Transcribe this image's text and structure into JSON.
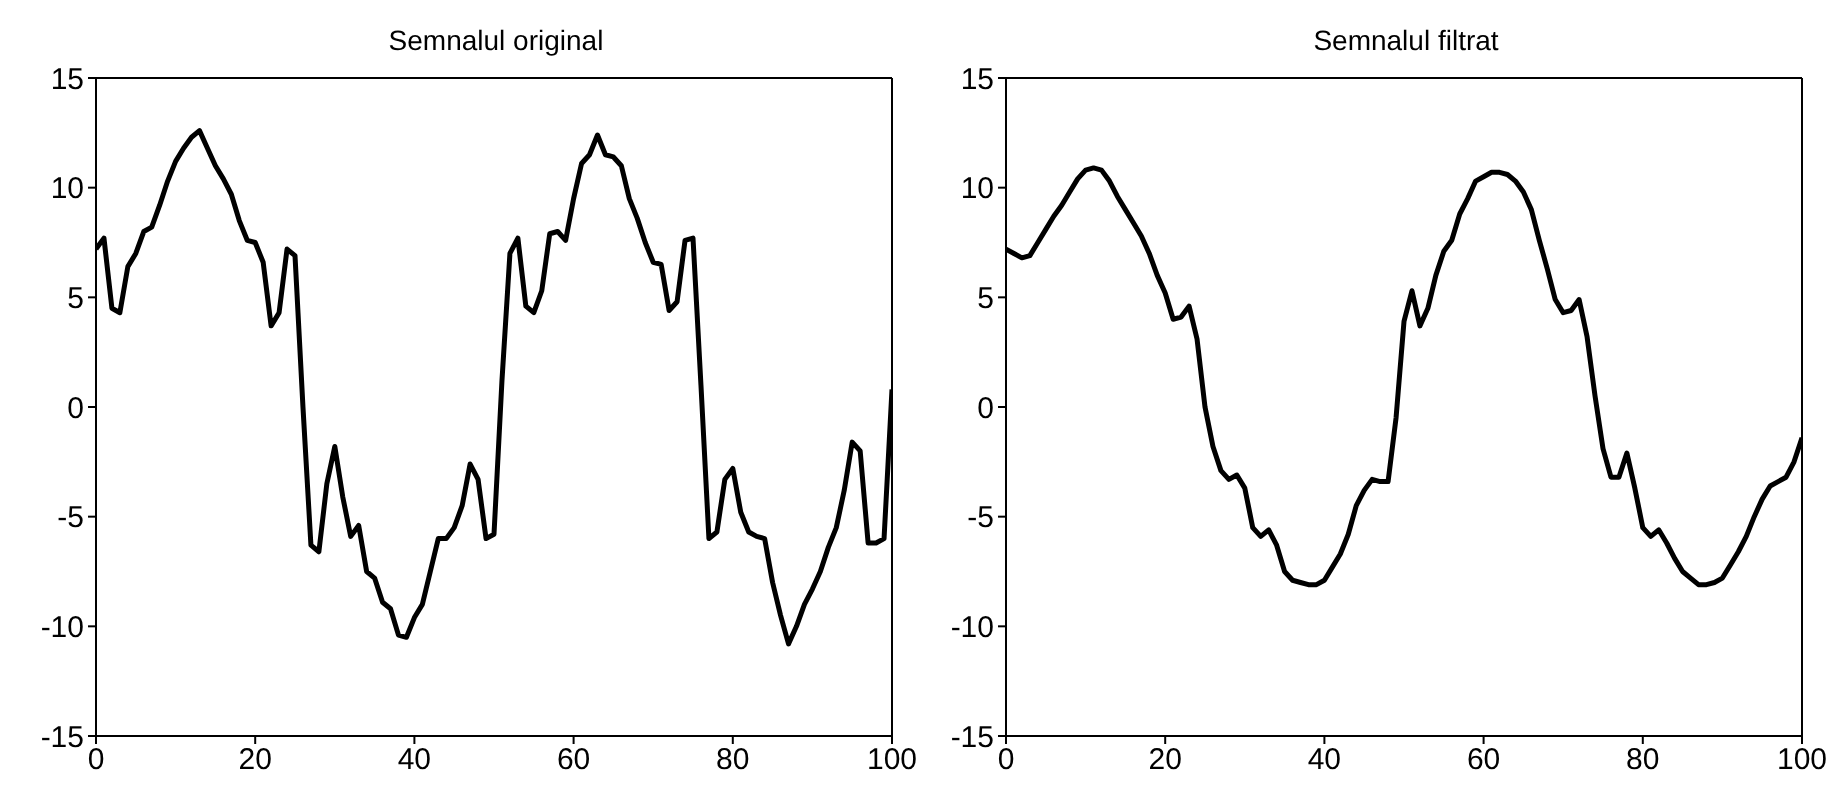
{
  "chart_data": [
    {
      "type": "line",
      "title": "Semnalul original",
      "x": [
        0,
        1,
        2,
        3,
        4,
        5,
        6,
        7,
        8,
        9,
        10,
        11,
        12,
        13,
        14,
        15,
        16,
        17,
        18,
        19,
        20,
        21,
        22,
        23,
        24,
        25,
        26,
        27,
        28,
        29,
        30,
        31,
        32,
        33,
        34,
        35,
        36,
        37,
        38,
        39,
        40,
        41,
        42,
        43,
        44,
        45,
        46,
        47,
        48,
        49,
        50,
        51,
        52,
        53,
        54,
        55,
        56,
        57,
        58,
        59,
        60,
        61,
        62,
        63,
        64,
        65,
        66,
        67,
        68,
        69,
        70,
        71,
        72,
        73,
        74,
        75,
        76,
        77,
        78,
        79,
        80,
        81,
        82,
        83,
        84,
        85,
        86,
        87,
        88,
        89,
        90,
        91,
        92,
        93,
        94,
        95,
        96,
        97,
        98,
        99,
        100
      ],
      "series": [
        {
          "color": "#000000",
          "values": [
            7.2,
            7.7,
            4.5,
            4.3,
            6.4,
            7.0,
            8.0,
            8.2,
            9.2,
            10.3,
            11.2,
            11.8,
            12.3,
            12.6,
            11.8,
            11.0,
            10.4,
            9.7,
            8.5,
            7.6,
            7.5,
            6.6,
            3.7,
            4.3,
            7.2,
            6.9,
            0.0,
            -6.3,
            -6.6,
            -3.5,
            -1.8,
            -4.1,
            -5.9,
            -5.4,
            -7.5,
            -7.8,
            -8.9,
            -9.2,
            -10.4,
            -10.5,
            -9.6,
            -9.0,
            -7.5,
            -6.0,
            -6.0,
            -5.5,
            -4.5,
            -2.6,
            -3.3,
            -6.0,
            -5.8,
            1.2,
            7.0,
            7.7,
            4.6,
            4.3,
            5.3,
            7.9,
            8.0,
            7.6,
            9.5,
            11.1,
            11.5,
            12.4,
            11.5,
            11.4,
            11.0,
            9.5,
            8.6,
            7.5,
            6.6,
            6.5,
            4.4,
            4.8,
            7.6,
            7.7,
            1.0,
            -6.0,
            -5.7,
            -3.3,
            -2.8,
            -4.8,
            -5.7,
            -5.9,
            -6.0,
            -8.0,
            -9.5,
            -10.8,
            -10.0,
            -9.0,
            -8.3,
            -7.5,
            -6.4,
            -5.5,
            -3.8,
            -1.6,
            -2.0,
            -6.2,
            -6.2,
            -6.0,
            0.8
          ]
        }
      ],
      "xlim": [
        0,
        100
      ],
      "xticks": [
        0,
        20,
        40,
        60,
        80,
        100
      ],
      "ylim": [
        -15,
        15
      ],
      "yticks": [
        -15,
        -10,
        -5,
        0,
        5,
        10,
        15
      ],
      "line_style": "solid"
    },
    {
      "type": "line",
      "title": "Semnalul filtrat",
      "x": [
        0,
        1,
        2,
        3,
        4,
        5,
        6,
        7,
        8,
        9,
        10,
        11,
        12,
        13,
        14,
        15,
        16,
        17,
        18,
        19,
        20,
        21,
        22,
        23,
        24,
        25,
        26,
        27,
        28,
        29,
        30,
        31,
        32,
        33,
        34,
        35,
        36,
        37,
        38,
        39,
        40,
        41,
        42,
        43,
        44,
        45,
        46,
        47,
        48,
        49,
        50,
        51,
        52,
        53,
        54,
        55,
        56,
        57,
        58,
        59,
        60,
        61,
        62,
        63,
        64,
        65,
        66,
        67,
        68,
        69,
        70,
        71,
        72,
        73,
        74,
        75,
        76,
        77,
        78,
        79,
        80,
        81,
        82,
        83,
        84,
        85,
        86,
        87,
        88,
        89,
        90,
        91,
        92,
        93,
        94,
        95,
        96,
        97,
        98,
        99,
        100
      ],
      "series": [
        {
          "color": "#000000",
          "values": [
            7.2,
            7.0,
            6.8,
            6.9,
            7.5,
            8.1,
            8.7,
            9.2,
            9.8,
            10.4,
            10.8,
            10.9,
            10.8,
            10.3,
            9.6,
            9.0,
            8.4,
            7.8,
            7.0,
            6.0,
            5.2,
            4.0,
            4.1,
            4.6,
            3.1,
            0.0,
            -1.8,
            -2.9,
            -3.3,
            -3.1,
            -3.7,
            -5.5,
            -5.9,
            -5.6,
            -6.3,
            -7.5,
            -7.9,
            -8.0,
            -8.1,
            -8.1,
            -7.9,
            -7.3,
            -6.7,
            -5.8,
            -4.5,
            -3.8,
            -3.3,
            -3.4,
            -3.4,
            -0.5,
            3.9,
            5.3,
            3.7,
            4.5,
            6.0,
            7.1,
            7.6,
            8.8,
            9.5,
            10.3,
            10.5,
            10.7,
            10.7,
            10.6,
            10.3,
            9.8,
            9.0,
            7.6,
            6.3,
            4.9,
            4.3,
            4.4,
            4.9,
            3.2,
            0.5,
            -1.9,
            -3.2,
            -3.2,
            -2.1,
            -3.7,
            -5.5,
            -5.9,
            -5.6,
            -6.2,
            -6.9,
            -7.5,
            -7.8,
            -8.1,
            -8.1,
            -8.0,
            -7.8,
            -7.2,
            -6.6,
            -5.9,
            -5.0,
            -4.2,
            -3.6,
            -3.4,
            -3.2,
            -2.5,
            -1.4
          ]
        }
      ],
      "xlim": [
        0,
        100
      ],
      "xticks": [
        0,
        20,
        40,
        60,
        80,
        100
      ],
      "ylim": [
        -15,
        15
      ],
      "yticks": [
        -15,
        -10,
        -5,
        0,
        5,
        10,
        15
      ],
      "line_style": "solid"
    }
  ]
}
